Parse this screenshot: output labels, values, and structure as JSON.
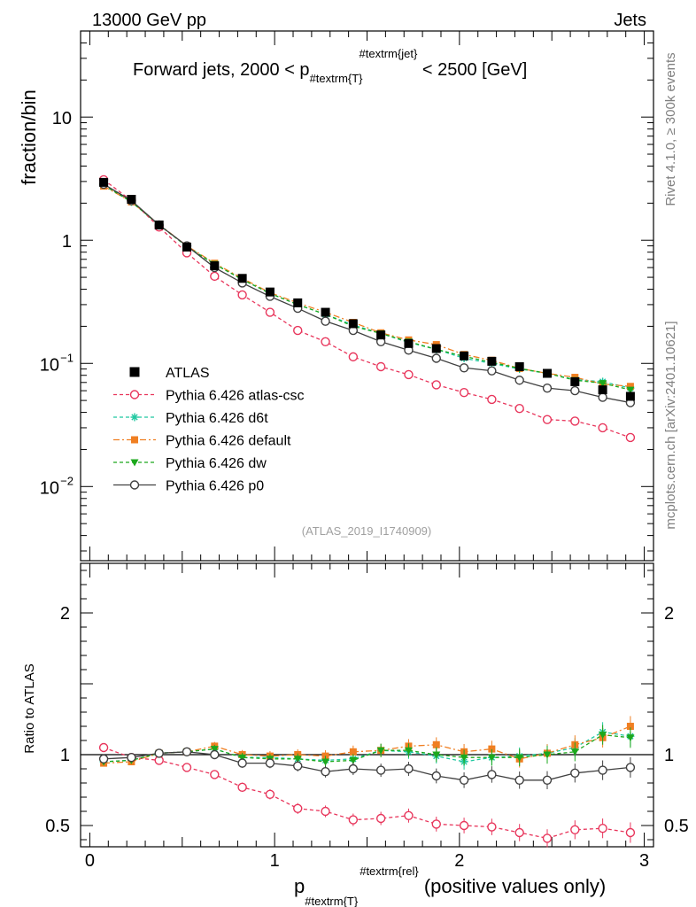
{
  "header": {
    "left": "13000 GeV pp",
    "right": "Jets"
  },
  "side_label": "mcplots.cern.ch [arXiv:2401.10621]",
  "rivet_label": "Rivet 4.1.0, ≥ 300k events",
  "analysis_id": "(ATLAS_2019_I1740909)",
  "colors": {
    "ATLAS": "#000000",
    "atlas_csc": "#e8365c",
    "d6t": "#1ec8a0",
    "default": "#f07f22",
    "dw": "#1ca81c",
    "p0": "#404040"
  },
  "chart_data": [
    {
      "type": "scatter",
      "scale": "log",
      "title": "Forward jets, 2000 < p_{#textrm{T}}^{#textrm{jet}} < 2500 [GeV]",
      "title_parts": {
        "main": "Forward jets, 2000 < p",
        "sub": "#textrm{T}",
        "sup": "#textrm{jet}",
        "tail": " < 2500 [GeV]"
      },
      "ylabel": "fraction/bin",
      "xlim": [
        -0.05,
        3.05
      ],
      "ylim": [
        0.0025,
        50
      ],
      "y_ticks": [
        {
          "label": "10",
          "value": 10
        },
        {
          "label": "1",
          "value": 1
        },
        {
          "label": "10",
          "exp": "−1",
          "value": 0.1
        },
        {
          "label": "10",
          "exp": "−2",
          "value": 0.01
        }
      ],
      "x": [
        0.075,
        0.225,
        0.375,
        0.525,
        0.675,
        0.825,
        0.975,
        1.125,
        1.275,
        1.425,
        1.575,
        1.725,
        1.875,
        2.025,
        2.175,
        2.325,
        2.475,
        2.625,
        2.775,
        2.925
      ],
      "series": [
        {
          "key": "ATLAS",
          "name": "ATLAS",
          "values": [
            2.95,
            2.15,
            1.33,
            0.88,
            0.62,
            0.49,
            0.38,
            0.31,
            0.26,
            0.21,
            0.17,
            0.145,
            0.132,
            0.115,
            0.104,
            0.094,
            0.083,
            0.071,
            0.061,
            0.054
          ]
        },
        {
          "key": "atlas_csc",
          "name": "Pythia 6.426 atlas-csc",
          "values": [
            3.1,
            2.1,
            1.28,
            0.79,
            0.51,
            0.36,
            0.26,
            0.185,
            0.15,
            0.113,
            0.094,
            0.081,
            0.067,
            0.058,
            0.051,
            0.043,
            0.035,
            0.034,
            0.03,
            0.025
          ]
        },
        {
          "key": "d6t",
          "name": "Pythia 6.426 d6t",
          "values": [
            2.8,
            2.05,
            1.34,
            0.89,
            0.64,
            0.48,
            0.37,
            0.3,
            0.25,
            0.205,
            0.175,
            0.148,
            0.13,
            0.11,
            0.1,
            0.09,
            0.083,
            0.074,
            0.071,
            0.063
          ]
        },
        {
          "key": "default",
          "name": "Pythia 6.426 default",
          "values": [
            2.75,
            2.05,
            1.34,
            0.9,
            0.65,
            0.49,
            0.375,
            0.31,
            0.26,
            0.215,
            0.177,
            0.155,
            0.142,
            0.118,
            0.106,
            0.091,
            0.083,
            0.077,
            0.068,
            0.065
          ]
        },
        {
          "key": "dw",
          "name": "Pythia 6.426 dw",
          "values": [
            2.8,
            2.05,
            1.33,
            0.89,
            0.64,
            0.48,
            0.37,
            0.3,
            0.25,
            0.2,
            0.175,
            0.15,
            0.13,
            0.114,
            0.102,
            0.091,
            0.083,
            0.073,
            0.069,
            0.061
          ]
        },
        {
          "key": "p0",
          "name": "Pythia 6.426 p0",
          "values": [
            2.85,
            2.1,
            1.33,
            0.9,
            0.6,
            0.45,
            0.35,
            0.28,
            0.22,
            0.185,
            0.15,
            0.128,
            0.11,
            0.092,
            0.087,
            0.073,
            0.063,
            0.06,
            0.053,
            0.048
          ]
        }
      ]
    },
    {
      "type": "scatter",
      "ylabel": "Ratio to ATLAS",
      "xlabel": "p_{#textrm{T}}^{#textrm{rel}} (positive values only)",
      "xlabel_parts": {
        "main": "p",
        "sub": "#textrm{T}",
        "sup": "#textrm{rel}",
        "tail": " (positive values only)"
      },
      "xlim": [
        -0.05,
        3.05
      ],
      "ylim": [
        0.35,
        2.35
      ],
      "y_ticks": [
        {
          "label": "0.5",
          "value": 0.5
        },
        {
          "label": "1",
          "value": 1
        },
        {
          "label": "2",
          "value": 2
        }
      ],
      "x_ticks": [
        {
          "label": "0",
          "value": 0
        },
        {
          "label": "1",
          "value": 1
        },
        {
          "label": "2",
          "value": 2
        },
        {
          "label": "3",
          "value": 3
        }
      ],
      "x": [
        0.075,
        0.225,
        0.375,
        0.525,
        0.675,
        0.825,
        0.975,
        1.125,
        1.275,
        1.425,
        1.575,
        1.725,
        1.875,
        2.025,
        2.175,
        2.325,
        2.475,
        2.625,
        2.775,
        2.925
      ],
      "series": [
        {
          "key": "atlas_csc",
          "name": "Pythia 6.426 atlas-csc",
          "values": [
            1.05,
            0.98,
            0.96,
            0.91,
            0.86,
            0.77,
            0.72,
            0.62,
            0.6,
            0.54,
            0.55,
            0.57,
            0.51,
            0.5,
            0.49,
            0.45,
            0.41,
            0.47,
            0.48,
            0.45
          ]
        },
        {
          "key": "d6t",
          "name": "Pythia 6.426 d6t",
          "values": [
            0.95,
            0.96,
            1.01,
            1.02,
            1.04,
            0.98,
            0.98,
            0.97,
            0.96,
            0.97,
            1.03,
            1.02,
            0.99,
            0.95,
            0.98,
            0.99,
            1.01,
            1.05,
            1.16,
            1.13
          ]
        },
        {
          "key": "default",
          "name": "Pythia 6.426 default",
          "values": [
            0.94,
            0.95,
            1.01,
            1.02,
            1.06,
            1.0,
            0.99,
            1.0,
            0.99,
            1.02,
            1.03,
            1.06,
            1.07,
            1.02,
            1.04,
            0.97,
            1.01,
            1.07,
            1.12,
            1.2
          ]
        },
        {
          "key": "dw",
          "name": "Pythia 6.426 dw",
          "values": [
            0.95,
            0.96,
            1.01,
            1.02,
            1.04,
            0.98,
            0.97,
            0.97,
            0.95,
            0.96,
            1.03,
            1.03,
            1.0,
            0.98,
            0.98,
            0.98,
            1.0,
            1.02,
            1.14,
            1.12
          ]
        },
        {
          "key": "p0",
          "name": "Pythia 6.426 p0",
          "values": [
            0.97,
            0.98,
            1.01,
            1.02,
            1.0,
            0.94,
            0.94,
            0.92,
            0.88,
            0.9,
            0.89,
            0.9,
            0.85,
            0.82,
            0.86,
            0.82,
            0.82,
            0.87,
            0.89,
            0.91
          ]
        }
      ]
    }
  ]
}
